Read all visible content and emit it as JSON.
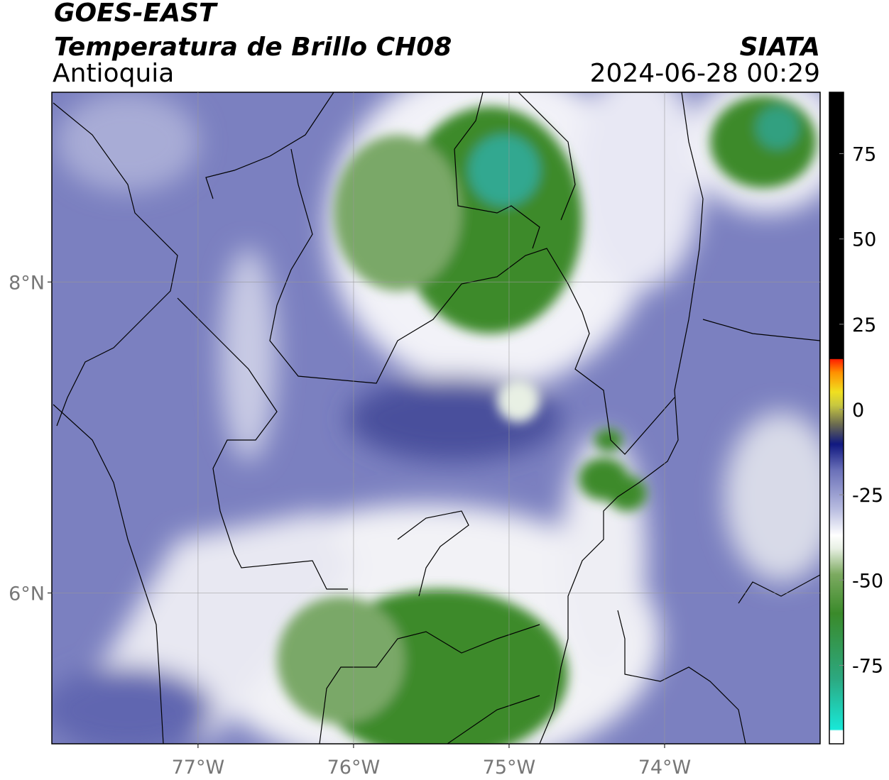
{
  "header": {
    "title": "GOES-EAST",
    "subtitle": "Temperatura de Brillo CH08",
    "region": "Antioquia",
    "source": "SIATA",
    "datetime": "2024-06-28 00:29"
  },
  "map": {
    "xlim": [
      -77.94,
      -73.0
    ],
    "ylim": [
      5.03,
      9.22
    ],
    "xticks": [
      {
        "value": -77,
        "label": "77°W"
      },
      {
        "value": -76,
        "label": "76°W"
      },
      {
        "value": -75,
        "label": "75°W"
      },
      {
        "value": -74,
        "label": "74°W"
      }
    ],
    "yticks": [
      {
        "value": 8,
        "label": "8°N"
      },
      {
        "value": 6,
        "label": "6°N"
      }
    ],
    "grid": true
  },
  "colorbar": {
    "lim": [
      -98,
      93
    ],
    "ticks": [
      75,
      50,
      25,
      0,
      -25,
      -50,
      -75
    ]
  }
}
